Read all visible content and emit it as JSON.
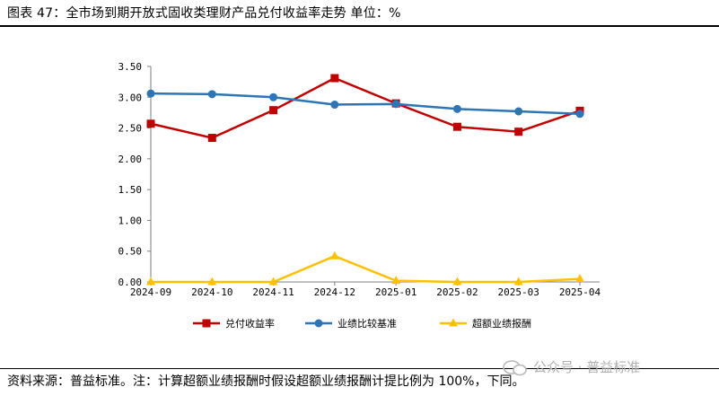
{
  "header": {
    "title": "图表 47：全市场到期开放式固收类理财产品兑付收益率走势   单位：%"
  },
  "footer": {
    "source": "资料来源：普益标准。注：计算超额业绩报酬时假设超额业绩报酬计提比例为 100%，下同。"
  },
  "watermark": {
    "text": "公众号 · 普益标准"
  },
  "chart_data": {
    "type": "line",
    "categories": [
      "2024-09",
      "2024-10",
      "2024-11",
      "2024-12",
      "2025-01",
      "2025-02",
      "2025-03",
      "2025-04"
    ],
    "ylim": [
      0,
      3.5
    ],
    "yticks": [
      "0.00",
      "0.50",
      "1.00",
      "1.50",
      "2.00",
      "2.50",
      "3.00",
      "3.50"
    ],
    "grid": false,
    "legend": "bottom",
    "series": [
      {
        "name": "兑付收益率",
        "color": "#c00000",
        "marker": "square",
        "values": [
          2.57,
          2.34,
          2.79,
          3.31,
          2.9,
          2.52,
          2.44,
          2.78
        ]
      },
      {
        "name": "业绩比较基准",
        "color": "#2e75b6",
        "marker": "circle",
        "values": [
          3.06,
          3.05,
          3.0,
          2.88,
          2.89,
          2.81,
          2.77,
          2.73
        ]
      },
      {
        "name": "超额业绩报酬",
        "color": "#ffc000",
        "marker": "triangle",
        "values": [
          0.0,
          0.0,
          0.0,
          0.42,
          0.02,
          0.0,
          0.0,
          0.05
        ]
      }
    ]
  }
}
